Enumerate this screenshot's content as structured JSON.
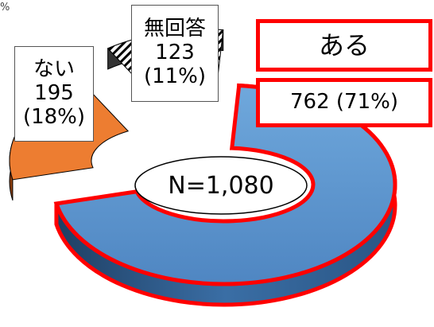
{
  "chart_data": {
    "type": "pie",
    "title": "",
    "total_label": "N=1,080",
    "slices": [
      {
        "name": "ある",
        "value": 762,
        "percent_label": "(71%)",
        "color": "#5b9bd5",
        "outline": "#ff0000"
      },
      {
        "name": "ない",
        "value": 195,
        "percent_label": "(18%)",
        "color": "#ed7d31"
      },
      {
        "name": "無回答",
        "value": 123,
        "percent_label": "(11%)",
        "color": "#ffffff",
        "pattern": "diagonal-hatch"
      }
    ]
  },
  "labels": {
    "nai": {
      "name": "ない",
      "value": "195",
      "percent": "(18%)"
    },
    "mukaitou": {
      "name": "無回答",
      "value": "123",
      "percent": "(11%)"
    },
    "aru": {
      "name": "ある",
      "value_line": "762 (71%)"
    },
    "center": "N=1,080",
    "stray_percent": "%"
  },
  "colors": {
    "aru": "#5b9bd5",
    "aru_side": "#2e5c8a",
    "nai": "#ed7d31",
    "nai_side": "#8a3e0f",
    "highlight": "#ff0000"
  }
}
